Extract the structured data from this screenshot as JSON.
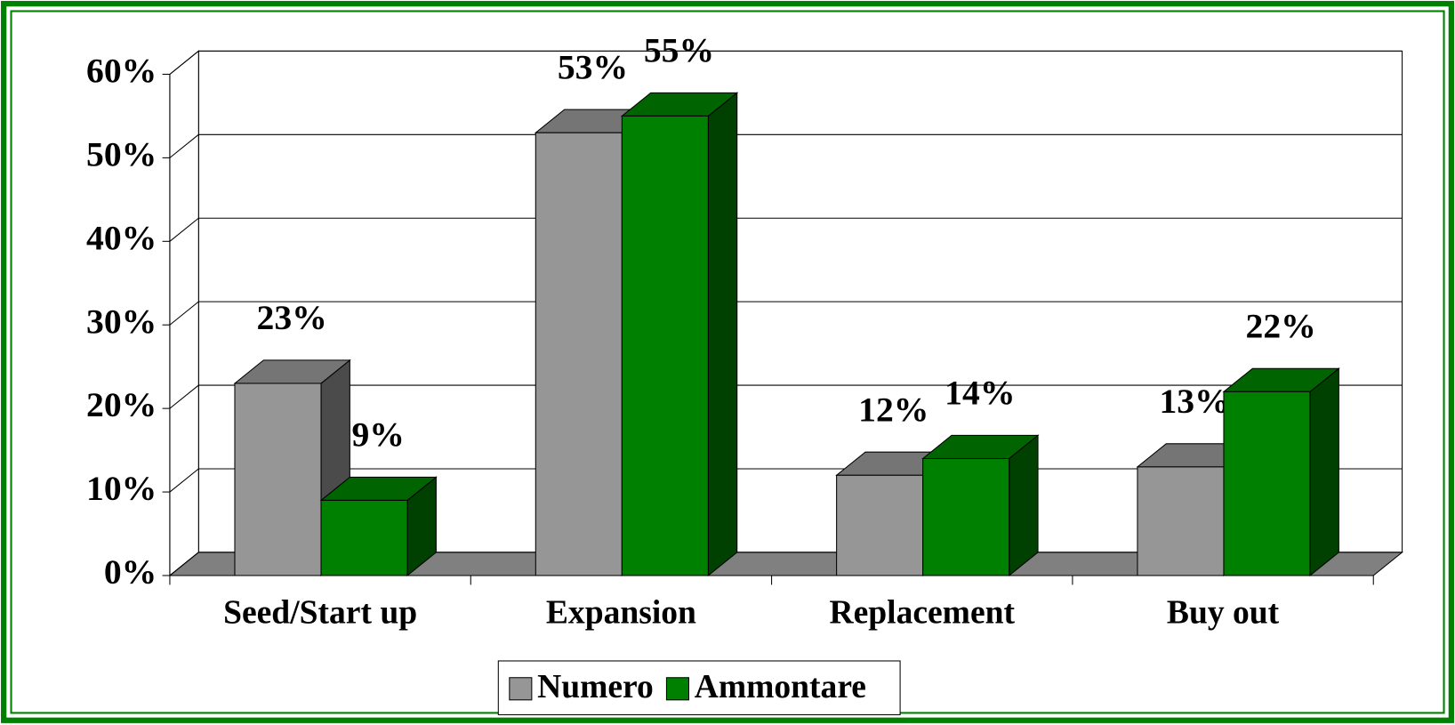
{
  "chart_data": {
    "type": "bar3d",
    "categories": [
      "Seed/Start up",
      "Expansion",
      "Replacement",
      "Buy out"
    ],
    "series": [
      {
        "name": "Numero",
        "color": "#969696",
        "values": [
          23,
          53,
          12,
          13
        ],
        "value_labels": [
          "23%",
          "53%",
          "12%",
          "13%"
        ]
      },
      {
        "name": "Ammontare",
        "color": "#008000",
        "values": [
          9,
          55,
          14,
          22
        ],
        "value_labels": [
          "9%",
          "55%",
          "14%",
          "22%"
        ]
      }
    ],
    "ylim": [
      0,
      60
    ],
    "yticks": [
      {
        "value": 0,
        "label": "0%"
      },
      {
        "value": 10,
        "label": "10%"
      },
      {
        "value": 20,
        "label": "20%"
      },
      {
        "value": 30,
        "label": "30%"
      },
      {
        "value": 40,
        "label": "40%"
      },
      {
        "value": 50,
        "label": "50%"
      },
      {
        "value": 60,
        "label": "60%"
      }
    ],
    "grid": true,
    "legend": "bottom"
  }
}
